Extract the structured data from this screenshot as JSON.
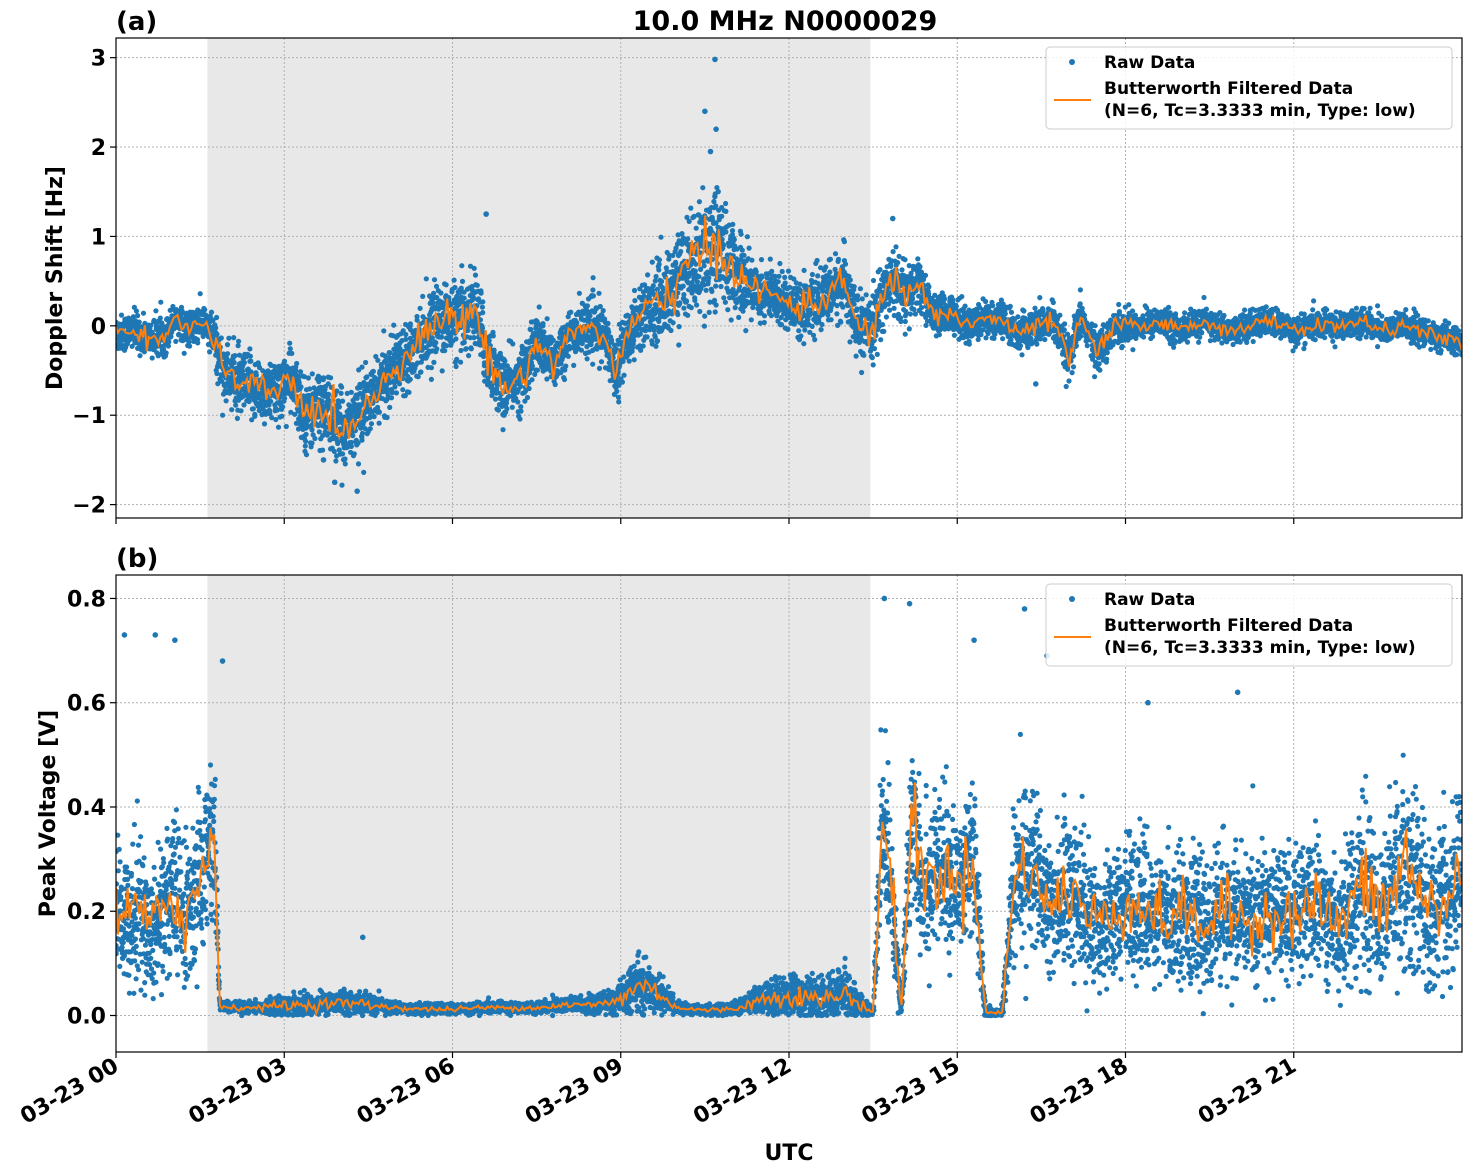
{
  "figure": {
    "title": "10.0 MHz N0000029",
    "xlabel": "UTC"
  },
  "chart_data": [
    {
      "type": "scatter",
      "panel_label": "(a)",
      "ylabel": "Doppler Shift [Hz]",
      "xlim": [
        0,
        24
      ],
      "ylim": [
        -2.15,
        3.22
      ],
      "x_ticks": [
        "03-23 00",
        "03-23 03",
        "03-23 06",
        "03-23 09",
        "03-23 12",
        "03-23 15",
        "03-23 18",
        "03-23 21"
      ],
      "y_ticks": [
        -2,
        -1,
        0,
        1,
        2,
        3
      ],
      "y_tick_labels": [
        "−2",
        "−1",
        "0",
        "1",
        "2",
        "3"
      ],
      "grid": true,
      "legend_position": "top-right",
      "shaded_x_range": [
        1.63,
        13.45
      ],
      "series": [
        {
          "name": "Raw Data",
          "kind": "scatter",
          "color": "#1f77b4",
          "x": [
            0.0,
            0.3,
            0.6,
            0.9,
            1.05,
            1.3,
            1.55,
            1.75,
            1.9,
            2.2,
            2.5,
            2.8,
            3.1,
            3.4,
            3.7,
            4.0,
            4.3,
            4.6,
            4.9,
            5.2,
            5.5,
            5.8,
            6.1,
            6.4,
            6.6,
            6.9,
            7.2,
            7.5,
            7.8,
            8.1,
            8.4,
            8.7,
            8.9,
            9.2,
            9.5,
            9.8,
            10.1,
            10.4,
            10.7,
            11.0,
            11.3,
            11.6,
            11.9,
            12.2,
            12.5,
            12.8,
            13.0,
            13.2,
            13.45,
            13.7,
            13.9,
            14.1,
            14.3,
            14.6,
            14.9,
            15.2,
            15.5,
            15.8,
            16.1,
            16.4,
            16.7,
            17.0,
            17.2,
            17.5,
            17.8,
            18.2,
            18.6,
            19.0,
            19.4,
            19.8,
            20.2,
            20.6,
            21.0,
            21.4,
            21.8,
            22.2,
            22.6,
            23.0,
            23.4,
            23.8,
            24.0
          ],
          "y": [
            -0.1,
            -0.05,
            -0.15,
            -0.1,
            0.1,
            -0.05,
            0.05,
            -0.15,
            -0.5,
            -0.65,
            -0.7,
            -0.75,
            -0.6,
            -1.0,
            -0.9,
            -1.2,
            -1.0,
            -0.8,
            -0.5,
            -0.3,
            -0.1,
            0.1,
            0.05,
            0.2,
            -0.3,
            -0.7,
            -0.6,
            -0.2,
            -0.4,
            -0.1,
            0.0,
            -0.1,
            -0.5,
            0.0,
            0.2,
            0.3,
            0.6,
            0.75,
            0.95,
            0.65,
            0.45,
            0.35,
            0.3,
            0.2,
            0.25,
            0.4,
            0.5,
            0.0,
            -0.1,
            0.4,
            0.5,
            0.3,
            0.5,
            0.1,
            0.15,
            0.0,
            0.1,
            0.05,
            -0.1,
            0.0,
            0.05,
            -0.4,
            0.1,
            -0.3,
            0.0,
            0.0,
            0.05,
            -0.05,
            0.05,
            -0.05,
            0.0,
            0.05,
            -0.05,
            0.0,
            0.0,
            0.05,
            -0.05,
            0.0,
            -0.1,
            -0.15,
            -0.2
          ],
          "spread": [
            0.2,
            0.2,
            0.2,
            0.2,
            0.15,
            0.2,
            0.2,
            0.25,
            0.35,
            0.35,
            0.35,
            0.35,
            0.35,
            0.4,
            0.4,
            0.4,
            0.4,
            0.35,
            0.35,
            0.35,
            0.35,
            0.4,
            0.4,
            0.45,
            0.4,
            0.35,
            0.35,
            0.35,
            0.3,
            0.3,
            0.3,
            0.3,
            0.3,
            0.35,
            0.4,
            0.45,
            0.5,
            0.6,
            0.7,
            0.5,
            0.35,
            0.3,
            0.3,
            0.3,
            0.3,
            0.35,
            0.35,
            0.3,
            0.35,
            0.35,
            0.35,
            0.35,
            0.3,
            0.2,
            0.2,
            0.2,
            0.2,
            0.2,
            0.2,
            0.2,
            0.2,
            0.25,
            0.2,
            0.2,
            0.2,
            0.15,
            0.15,
            0.15,
            0.15,
            0.15,
            0.15,
            0.15,
            0.15,
            0.15,
            0.15,
            0.15,
            0.15,
            0.15,
            0.15,
            0.15,
            0.15
          ],
          "outliers": [
            [
              10.68,
              2.98
            ],
            [
              10.5,
              2.4
            ],
            [
              10.7,
              2.2
            ],
            [
              6.6,
              1.25
            ],
            [
              4.3,
              -1.85
            ],
            [
              3.9,
              -1.75
            ],
            [
              13.85,
              1.2
            ],
            [
              10.6,
              1.95
            ],
            [
              3.7,
              -1.5
            ],
            [
              16.4,
              -0.65
            ]
          ]
        },
        {
          "name": "Butterworth Filtered Data\n(N=6, Tc=3.3333 min, Type: low)",
          "kind": "line",
          "color": "#ff7f0e",
          "x": [
            0.0,
            0.3,
            0.6,
            0.9,
            1.05,
            1.3,
            1.55,
            1.75,
            1.9,
            2.2,
            2.5,
            2.8,
            3.1,
            3.4,
            3.7,
            4.0,
            4.3,
            4.6,
            4.9,
            5.2,
            5.5,
            5.8,
            6.1,
            6.4,
            6.6,
            6.9,
            7.2,
            7.5,
            7.8,
            8.1,
            8.4,
            8.7,
            8.9,
            9.2,
            9.5,
            9.8,
            10.1,
            10.4,
            10.7,
            11.0,
            11.3,
            11.6,
            11.9,
            12.2,
            12.5,
            12.8,
            13.0,
            13.2,
            13.45,
            13.7,
            13.9,
            14.1,
            14.3,
            14.6,
            14.9,
            15.2,
            15.5,
            15.8,
            16.1,
            16.4,
            16.7,
            17.0,
            17.2,
            17.5,
            17.8,
            18.2,
            18.6,
            19.0,
            19.4,
            19.8,
            20.2,
            20.6,
            21.0,
            21.4,
            21.8,
            22.2,
            22.6,
            23.0,
            23.4,
            23.8,
            24.0
          ],
          "y": [
            -0.1,
            -0.05,
            -0.15,
            -0.1,
            0.1,
            -0.05,
            0.05,
            -0.15,
            -0.5,
            -0.65,
            -0.7,
            -0.75,
            -0.6,
            -1.0,
            -0.9,
            -1.2,
            -1.0,
            -0.8,
            -0.5,
            -0.3,
            -0.1,
            0.1,
            0.05,
            0.2,
            -0.3,
            -0.7,
            -0.6,
            -0.2,
            -0.4,
            -0.1,
            0.0,
            -0.1,
            -0.5,
            0.0,
            0.2,
            0.3,
            0.6,
            0.75,
            0.95,
            0.65,
            0.45,
            0.35,
            0.3,
            0.2,
            0.25,
            0.4,
            0.5,
            0.0,
            -0.1,
            0.4,
            0.5,
            0.3,
            0.5,
            0.1,
            0.15,
            0.0,
            0.1,
            0.05,
            -0.1,
            0.0,
            0.05,
            -0.4,
            0.1,
            -0.3,
            0.0,
            0.0,
            0.05,
            -0.05,
            0.05,
            -0.05,
            0.0,
            0.05,
            -0.05,
            0.0,
            0.0,
            0.05,
            -0.05,
            0.0,
            -0.1,
            -0.15,
            -0.2
          ]
        }
      ]
    },
    {
      "type": "scatter",
      "panel_label": "(b)",
      "ylabel": "Peak Voltage [V]",
      "xlim": [
        0,
        24
      ],
      "ylim": [
        -0.07,
        0.845
      ],
      "x_ticks": [
        "03-23 00",
        "03-23 03",
        "03-23 06",
        "03-23 09",
        "03-23 12",
        "03-23 15",
        "03-23 18",
        "03-23 21"
      ],
      "y_ticks": [
        0.0,
        0.2,
        0.4,
        0.6,
        0.8
      ],
      "y_tick_labels": [
        "0.0",
        "0.2",
        "0.4",
        "0.6",
        "0.8"
      ],
      "grid": true,
      "legend_position": "top-right",
      "shaded_x_range": [
        1.63,
        13.45
      ],
      "series": [
        {
          "name": "Raw Data",
          "kind": "scatter",
          "color": "#1f77b4",
          "x": [
            0.0,
            0.2,
            0.4,
            0.6,
            0.8,
            1.0,
            1.2,
            1.4,
            1.6,
            1.75,
            1.85,
            2.0,
            2.5,
            3.0,
            3.5,
            4.0,
            4.5,
            5.0,
            5.5,
            6.0,
            6.5,
            7.0,
            7.5,
            8.0,
            8.5,
            9.0,
            9.3,
            9.6,
            10.0,
            10.5,
            11.0,
            11.5,
            12.0,
            12.5,
            13.0,
            13.3,
            13.5,
            13.65,
            13.8,
            14.0,
            14.2,
            14.4,
            14.7,
            15.0,
            15.3,
            15.5,
            15.8,
            16.0,
            16.3,
            16.6,
            17.0,
            17.4,
            17.8,
            18.2,
            18.6,
            19.0,
            19.4,
            19.8,
            20.2,
            20.6,
            21.0,
            21.4,
            21.8,
            22.2,
            22.6,
            23.0,
            23.4,
            23.8,
            24.0
          ],
          "y": [
            0.2,
            0.18,
            0.22,
            0.15,
            0.2,
            0.25,
            0.18,
            0.22,
            0.3,
            0.35,
            0.02,
            0.015,
            0.015,
            0.02,
            0.02,
            0.025,
            0.02,
            0.015,
            0.012,
            0.012,
            0.015,
            0.015,
            0.015,
            0.02,
            0.02,
            0.03,
            0.06,
            0.05,
            0.015,
            0.01,
            0.012,
            0.03,
            0.04,
            0.03,
            0.04,
            0.02,
            0.005,
            0.35,
            0.3,
            0.005,
            0.4,
            0.25,
            0.28,
            0.25,
            0.3,
            0.005,
            0.005,
            0.25,
            0.3,
            0.2,
            0.25,
            0.18,
            0.2,
            0.22,
            0.18,
            0.2,
            0.17,
            0.2,
            0.18,
            0.2,
            0.19,
            0.22,
            0.17,
            0.25,
            0.2,
            0.3,
            0.2,
            0.22,
            0.3
          ],
          "spread": [
            0.12,
            0.12,
            0.15,
            0.12,
            0.14,
            0.15,
            0.14,
            0.15,
            0.15,
            0.15,
            0.01,
            0.01,
            0.01,
            0.02,
            0.02,
            0.02,
            0.02,
            0.01,
            0.01,
            0.01,
            0.01,
            0.01,
            0.01,
            0.015,
            0.015,
            0.03,
            0.05,
            0.04,
            0.01,
            0.01,
            0.01,
            0.03,
            0.04,
            0.04,
            0.05,
            0.02,
            0.005,
            0.2,
            0.15,
            0.005,
            0.2,
            0.15,
            0.15,
            0.12,
            0.15,
            0.01,
            0.01,
            0.15,
            0.15,
            0.12,
            0.15,
            0.12,
            0.12,
            0.12,
            0.12,
            0.12,
            0.12,
            0.12,
            0.12,
            0.12,
            0.12,
            0.12,
            0.12,
            0.15,
            0.15,
            0.18,
            0.15,
            0.15,
            0.17
          ],
          "outliers": [
            [
              13.7,
              0.8
            ],
            [
              14.15,
              0.79
            ],
            [
              15.3,
              0.72
            ],
            [
              16.2,
              0.78
            ],
            [
              16.6,
              0.69
            ],
            [
              22.8,
              0.7
            ],
            [
              0.15,
              0.73
            ],
            [
              0.7,
              0.73
            ],
            [
              1.05,
              0.72
            ],
            [
              1.9,
              0.68
            ],
            [
              4.4,
              0.15
            ],
            [
              13.95,
              0.005
            ],
            [
              20.0,
              0.62
            ],
            [
              18.4,
              0.6
            ]
          ]
        },
        {
          "name": "Butterworth Filtered Data\n(N=6, Tc=3.3333 min, Type: low)",
          "kind": "line",
          "color": "#ff7f0e",
          "x": [
            0.0,
            0.2,
            0.4,
            0.6,
            0.8,
            1.0,
            1.2,
            1.4,
            1.6,
            1.75,
            1.85,
            2.0,
            2.5,
            3.0,
            3.5,
            4.0,
            4.5,
            5.0,
            5.5,
            6.0,
            6.5,
            7.0,
            7.5,
            8.0,
            8.5,
            9.0,
            9.3,
            9.6,
            10.0,
            10.5,
            11.0,
            11.5,
            12.0,
            12.5,
            13.0,
            13.3,
            13.5,
            13.65,
            13.8,
            14.0,
            14.2,
            14.4,
            14.7,
            15.0,
            15.3,
            15.5,
            15.8,
            16.0,
            16.3,
            16.6,
            17.0,
            17.4,
            17.8,
            18.2,
            18.6,
            19.0,
            19.4,
            19.8,
            20.2,
            20.6,
            21.0,
            21.4,
            21.8,
            22.2,
            22.6,
            23.0,
            23.4,
            23.8,
            24.0
          ],
          "y": [
            0.2,
            0.18,
            0.22,
            0.15,
            0.2,
            0.25,
            0.18,
            0.22,
            0.3,
            0.35,
            0.02,
            0.015,
            0.015,
            0.02,
            0.02,
            0.025,
            0.02,
            0.015,
            0.012,
            0.012,
            0.015,
            0.015,
            0.015,
            0.02,
            0.02,
            0.03,
            0.06,
            0.05,
            0.015,
            0.01,
            0.012,
            0.03,
            0.04,
            0.03,
            0.04,
            0.02,
            0.005,
            0.35,
            0.3,
            0.005,
            0.4,
            0.25,
            0.28,
            0.25,
            0.3,
            0.005,
            0.005,
            0.25,
            0.3,
            0.2,
            0.25,
            0.18,
            0.2,
            0.22,
            0.18,
            0.2,
            0.17,
            0.2,
            0.18,
            0.2,
            0.19,
            0.22,
            0.17,
            0.25,
            0.2,
            0.3,
            0.2,
            0.22,
            0.3
          ]
        }
      ]
    }
  ]
}
